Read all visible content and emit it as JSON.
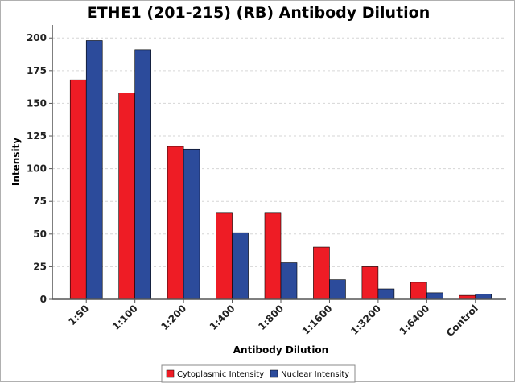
{
  "chart_data": {
    "type": "bar",
    "title": "ETHE1 (201-215) (RB) Antibody Dilution",
    "xlabel": "Antibody Dilution",
    "ylabel": "Intensity",
    "categories": [
      "1:50",
      "1:100",
      "1:200",
      "1:400",
      "1:800",
      "1:1600",
      "1:3200",
      "1:6400",
      "Control"
    ],
    "series": [
      {
        "name": "Cytoplasmic Intensity",
        "color": "#ee1c25",
        "values": [
          168,
          158,
          117,
          66,
          66,
          40,
          25,
          13,
          3
        ]
      },
      {
        "name": "Nuclear Intensity",
        "color": "#2c4b9b",
        "values": [
          198,
          191,
          115,
          51,
          28,
          15,
          8,
          5,
          4
        ]
      }
    ],
    "ylim": [
      0,
      210
    ],
    "yticks": [
      0,
      25,
      50,
      75,
      100,
      125,
      150,
      175,
      200
    ],
    "grid": true,
    "legend_position": "bottom"
  }
}
